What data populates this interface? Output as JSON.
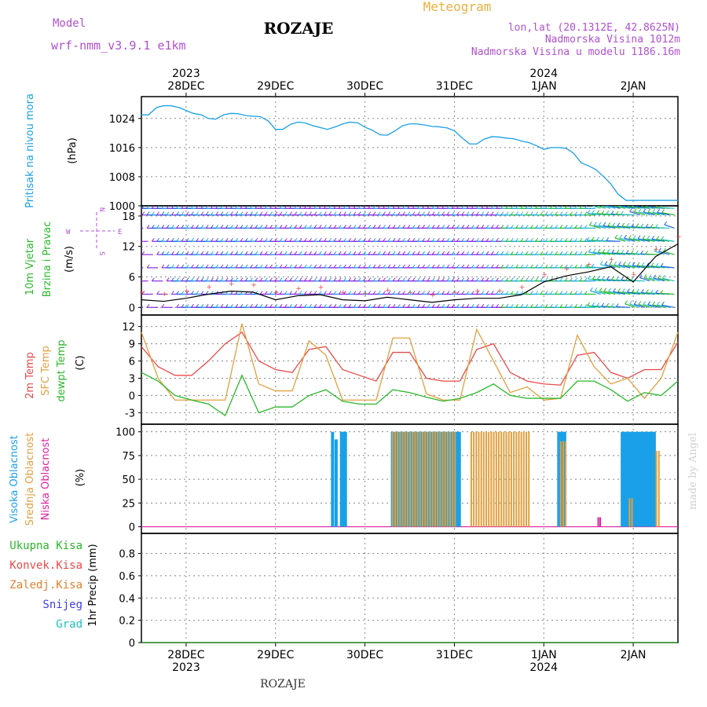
{
  "header": {
    "model_label": "Model",
    "model_name": "wrf-nmm_v3.9.1  e1km",
    "title": "ROZAJE",
    "product": "Meteogram",
    "location": "lon,lat (20.1312E, 42.8625N)",
    "altitude": "Nadmorska Visina 1012m",
    "model_altitude": "Nadmorska Visina u modelu 1186.16m",
    "footer_station": "ROZAJE",
    "credit": "made by Angel"
  },
  "time_axis": {
    "top_years": [
      {
        "text": "2023",
        "day": 0
      },
      {
        "text": "2024",
        "day": 4
      }
    ],
    "bottom_years": [
      {
        "text": "2023",
        "day": 0
      },
      {
        "text": "2024",
        "day": 4
      }
    ],
    "days": [
      "28DEC",
      "29DEC",
      "30DEC",
      "31DEC",
      "1JAN",
      "2JAN"
    ]
  },
  "chart_data": [
    {
      "type": "line",
      "panel": "pressure",
      "ylabel_main": "Pritisak na nivou mora",
      "ylabel_unit": "(hPa)",
      "yticks": [
        1000,
        1008,
        1016,
        1024
      ],
      "ylim": [
        1000,
        1030
      ],
      "xlim_days": [
        -0.5,
        5.5
      ],
      "color": "#1aa0e8",
      "series": [
        {
          "x": [
            -0.5,
            -0.42,
            -0.33,
            -0.25,
            -0.17,
            -0.08,
            0.0,
            0.08,
            0.17,
            0.25,
            0.33,
            0.42,
            0.5,
            0.58,
            0.67,
            0.75,
            0.83,
            0.92,
            1.0,
            1.08,
            1.17,
            1.25,
            1.33,
            1.42,
            1.5,
            1.58,
            1.67,
            1.75,
            1.83,
            1.92,
            2.0,
            2.08,
            2.17,
            2.25,
            2.33,
            2.42,
            2.5,
            2.58,
            2.67,
            2.75,
            2.83,
            2.92,
            3.0,
            3.08,
            3.17,
            3.25,
            3.33,
            3.42,
            3.5,
            3.58,
            3.67,
            3.75,
            3.83,
            3.92,
            4.0,
            4.08,
            4.17,
            4.25,
            4.33,
            4.42,
            4.5,
            4.58,
            4.67,
            4.75,
            4.83,
            4.92,
            5.0,
            5.08,
            5.17,
            5.25,
            5.33,
            5.42,
            5.5
          ],
          "y": [
            1025,
            1025,
            1027,
            1027.5,
            1027.5,
            1027,
            1026.2,
            1025.4,
            1025,
            1024,
            1023.8,
            1025,
            1025.4,
            1025.3,
            1024.8,
            1024.6,
            1024.5,
            1023.3,
            1021,
            1021,
            1022.4,
            1023,
            1022.8,
            1022,
            1021.5,
            1021,
            1021.7,
            1022.5,
            1023,
            1022.8,
            1021.6,
            1020.8,
            1019.5,
            1019.4,
            1020.5,
            1022,
            1022.5,
            1022.5,
            1022.2,
            1021.8,
            1021.7,
            1021.4,
            1020.6,
            1018.8,
            1017,
            1017,
            1018.3,
            1019,
            1018.9,
            1018.6,
            1018.4,
            1017.8,
            1017.4,
            1016.5,
            1015.5,
            1016,
            1016,
            1015.8,
            1014.5,
            1011.8,
            1011,
            1010,
            1008,
            1006,
            1003.2,
            1001.5,
            1001.5,
            1001.5,
            1001.5,
            1001.5,
            1001.5,
            1001.5,
            1001.5
          ]
        }
      ]
    },
    {
      "type": "line",
      "panel": "wind",
      "ylabel_main": "10m Vjetar",
      "ylabel_sub": "Brzina i Pravac",
      "ylabel_unit": "(m/s)",
      "compass": {
        "n": "N",
        "s": "S",
        "e": "E",
        "w": "W"
      },
      "yticks": [
        0,
        6,
        12,
        18
      ],
      "ylim": [
        -1.5,
        20
      ],
      "series": [
        {
          "name": "speed",
          "x": [
            -0.5,
            -0.25,
            0,
            0.25,
            0.5,
            0.75,
            1.0,
            1.25,
            1.5,
            1.75,
            2.0,
            2.25,
            2.5,
            2.75,
            3.0,
            3.25,
            3.5,
            3.75,
            4.0,
            4.25,
            4.5,
            4.75,
            5.0,
            5.25,
            5.5
          ],
          "y": [
            1.5,
            1.2,
            1.8,
            2.6,
            3.2,
            3.0,
            1.5,
            2.3,
            2.5,
            1.5,
            1.3,
            2.0,
            1.5,
            1.0,
            1.5,
            1.8,
            1.8,
            2.5,
            5.0,
            6.2,
            7.0,
            8.0,
            5.0,
            10.0,
            12.5
          ]
        }
      ]
    },
    {
      "type": "line",
      "panel": "temperature",
      "ylabel_lines": [
        "2m Temp",
        "SFC Temp",
        "dewpt Temp"
      ],
      "ylabel_unit": "(C)",
      "yticks": [
        -3,
        0,
        3,
        6,
        9,
        12
      ],
      "ylim": [
        -5,
        14
      ],
      "series": [
        {
          "name": "2m Temp",
          "color": "#e84a4a",
          "y": [
            8.5,
            5,
            3.5,
            3.5,
            6,
            9,
            11,
            6,
            4.5,
            4,
            8,
            8.5,
            4.5,
            3.5,
            2.5,
            7.5,
            7.5,
            3,
            2.5,
            2.5,
            8,
            9,
            4,
            2.5,
            2,
            1.8,
            7,
            7.5,
            4,
            3,
            4.5,
            4.5,
            9.3
          ]
        },
        {
          "name": "SFC Temp",
          "color": "#e0a040",
          "y": [
            11,
            3,
            -0.8,
            -0.8,
            -0.8,
            -0.8,
            12.5,
            2,
            0.8,
            0.8,
            9.5,
            7,
            -0.8,
            -0.8,
            -0.8,
            10,
            10,
            0.3,
            -0.8,
            -0.8,
            11.5,
            6,
            0.5,
            1.5,
            -0.8,
            -0.5,
            10.5,
            5,
            2,
            3,
            -0.5,
            3,
            11
          ]
        },
        {
          "name": "dewpt Temp",
          "color": "#2ab82a",
          "y": [
            4,
            2.5,
            0,
            -0.8,
            -1.5,
            -3.5,
            3.5,
            -3,
            -2,
            -2,
            0,
            1,
            -1,
            -1.5,
            -1.5,
            1,
            0.5,
            -0.3,
            -1,
            -0.5,
            0.5,
            2,
            0,
            -0.5,
            -0.5,
            -0.5,
            2.5,
            2.5,
            1,
            -1,
            0.5,
            0,
            2.5
          ]
        }
      ],
      "x_start": -0.5,
      "x_step": 0.1875
    },
    {
      "type": "bar",
      "panel": "cloud",
      "ylabel_lines": [
        "Visoka Oblacnost",
        "Srednja Oblacnost",
        "Niska Oblacnost"
      ],
      "ylabel_unit": "(%)",
      "yticks": [
        0,
        25,
        50,
        75,
        100
      ],
      "ylim": [
        -7,
        108
      ],
      "series": [
        {
          "name": "Visoka Oblacnost",
          "color": "#1aa0e8",
          "segments": [
            [
              1.62,
              1.64,
              100
            ],
            [
              1.66,
              1.68,
              92
            ],
            [
              1.72,
              1.78,
              100
            ],
            [
              2.29,
              3.05,
              100
            ],
            [
              4.15,
              4.22,
              100
            ],
            [
              4.86,
              5.0,
              100
            ],
            [
              5.02,
              5.22,
              100
            ]
          ]
        },
        {
          "name": "Srednja Oblacnost",
          "color": "#e0a040",
          "segments": [
            [
              2.3,
              3.02,
              100
            ],
            [
              3.18,
              3.85,
              100
            ],
            [
              4.18,
              4.25,
              90
            ],
            [
              4.95,
              5.0,
              30
            ],
            [
              5.25,
              5.28,
              80
            ]
          ]
        },
        {
          "name": "Niska Oblacnost",
          "color": "#e020a0",
          "segments": [
            [
              4.6,
              4.63,
              10
            ]
          ]
        }
      ]
    },
    {
      "type": "line",
      "panel": "precipitation",
      "ylabel_unit": "1hr Precip (mm)",
      "legend": [
        {
          "text": "Ukupna Kisa",
          "color": "#2ab82a"
        },
        {
          "text": "Konvek.Kisa",
          "color": "#e84a4a"
        },
        {
          "text": "Zaledj.Kisa",
          "color": "#e08030"
        },
        {
          "text": "Snijeg",
          "color": "#4040e0"
        },
        {
          "text": "Grad",
          "color": "#20c0c0"
        }
      ],
      "yticks": [
        "0",
        "0.2",
        "0.4",
        "0.6",
        "0.8"
      ],
      "ylim": [
        0,
        0.98
      ],
      "series": [
        {
          "name": "Ukupna Kisa",
          "x": [
            -0.5,
            5.5
          ],
          "y": [
            0,
            0
          ]
        }
      ]
    }
  ]
}
